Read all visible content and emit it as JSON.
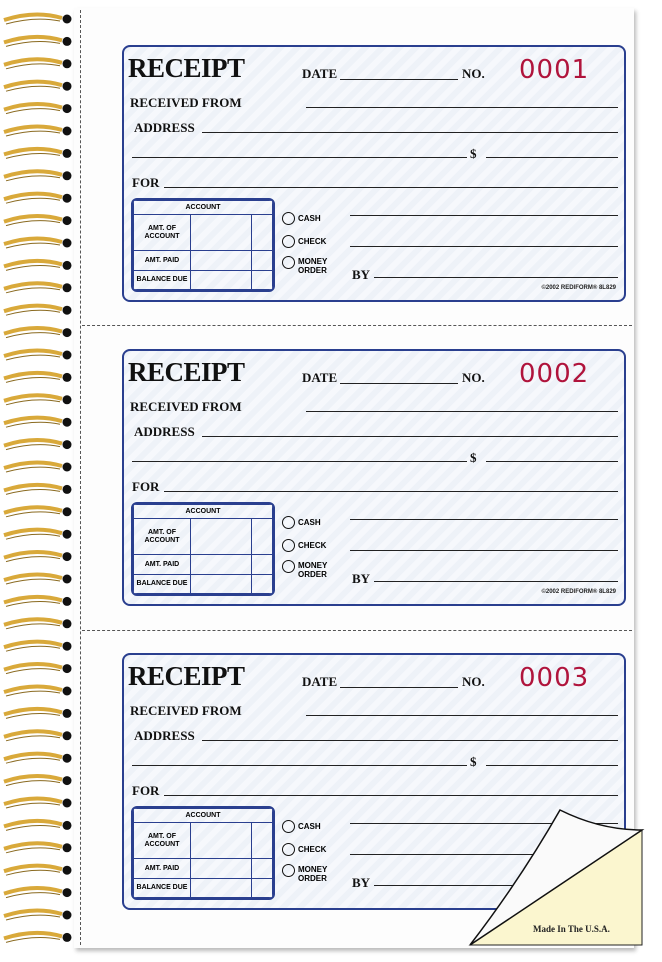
{
  "form": {
    "title": "RECEIPT",
    "date_label": "DATE",
    "no_label": "NO.",
    "received_from_label": "RECEIVED FROM",
    "address_label": "ADDRESS",
    "dollar_label": "$",
    "for_label": "FOR",
    "account_header": "ACCOUNT",
    "account_rows": [
      "AMT. OF ACCOUNT",
      "AMT. PAID",
      "BALANCE DUE"
    ],
    "payment_options": [
      "CASH",
      "CHECK",
      "MONEY ORDER"
    ],
    "by_label": "BY",
    "footer": "©2002 REDIFORM® 8L829"
  },
  "receipts": [
    {
      "number": "0001"
    },
    {
      "number": "0002"
    },
    {
      "number": "0003"
    }
  ],
  "made_in": "Made In The U.S.A.",
  "colors": {
    "border": "#2a3f8f",
    "number": "#b0143c",
    "spiral": "#d9a93a",
    "carbon_copy": "#fbf6cf"
  }
}
